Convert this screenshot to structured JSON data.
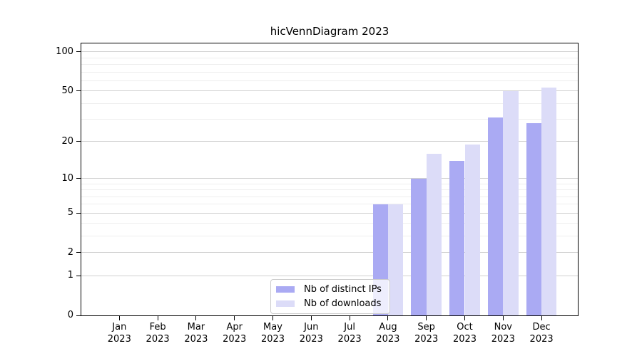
{
  "title": "hicVennDiagram 2023",
  "chart_data": {
    "type": "bar",
    "title": "hicVennDiagram 2023",
    "categories": [
      "Jan",
      "Feb",
      "Mar",
      "Apr",
      "May",
      "Jun",
      "Jul",
      "Aug",
      "Sep",
      "Oct",
      "Nov",
      "Dec"
    ],
    "x_year_label": "2023",
    "series": [
      {
        "name": "Nb of distinct IPs",
        "color": "#aaaaf3",
        "values": [
          0,
          0,
          0,
          0,
          0,
          0,
          0,
          6,
          10,
          14,
          31,
          28
        ]
      },
      {
        "name": "Nb of downloads",
        "color": "#dcdcf8",
        "values": [
          0,
          0,
          0,
          0,
          0,
          0,
          0,
          6,
          16,
          19,
          50,
          53
        ]
      }
    ],
    "yscale": "log1p",
    "ylim": [
      0,
      116
    ],
    "yticks": [
      0,
      1,
      2,
      5,
      10,
      20,
      50,
      100
    ],
    "minor_gridlines": [
      3,
      4,
      6,
      7,
      8,
      9,
      30,
      40,
      60,
      70,
      80,
      90
    ],
    "grid": true,
    "legend_position": "lower center"
  },
  "colors": {
    "axis": "#000000",
    "grid_major": "#d0d0d0",
    "grid_minor": "#eeeeee",
    "legend_border": "#cccccc",
    "background": "#ffffff"
  }
}
